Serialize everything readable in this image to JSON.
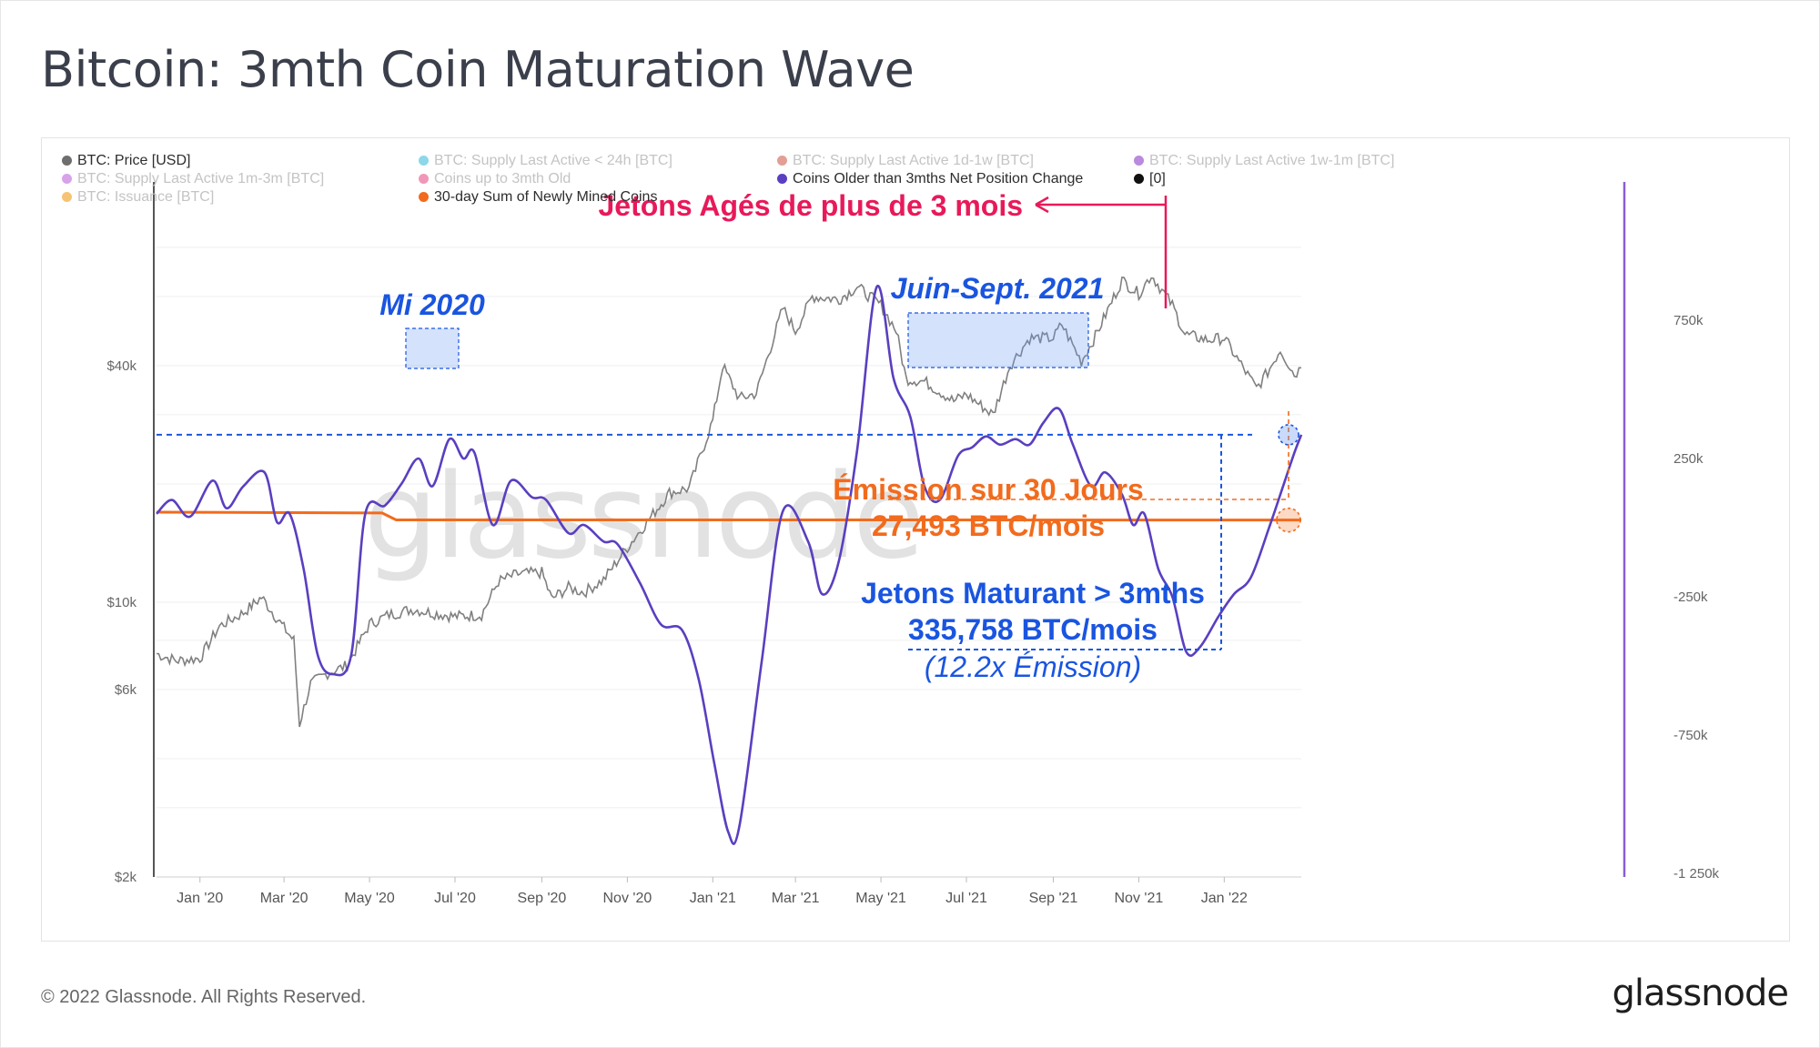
{
  "title": "Bitcoin: 3mth Coin Maturation Wave",
  "footer": "© 2022 Glassnode. All Rights Reserved.",
  "brand": "glassnode",
  "watermark": "glassnode",
  "legend": [
    {
      "label": "BTC: Price [USD]",
      "color": "#6e6e6e",
      "active": true
    },
    {
      "label": "BTC: Supply Last Active < 24h [BTC]",
      "color": "#5bc7e0",
      "active": false
    },
    {
      "label": "BTC: Supply Last Active 1d-1w [BTC]",
      "color": "#d7756a",
      "active": false
    },
    {
      "label": "BTC: Supply Last Active 1w-1m [BTC]",
      "color": "#9b59d0",
      "active": false
    },
    {
      "label": "BTC: Supply Last Active 1m-3m [BTC]",
      "color": "#c77be0",
      "active": false
    },
    {
      "label": "Coins up to 3mth Old",
      "color": "#e96b9b",
      "active": false
    },
    {
      "label": "Coins Older than 3mths Net Position Change",
      "color": "#5a3fc0",
      "active": true
    },
    {
      "label": "[0]",
      "color": "#111111",
      "active": true
    },
    {
      "label": "BTC: Issuance [BTC]",
      "color": "#f2a93b",
      "active": false
    },
    {
      "label": "30-day Sum of Newly Mined Coins",
      "color": "#f26b1d",
      "active": true
    }
  ],
  "annotations": {
    "mi2020": "Mi 2020",
    "juin_sept": "Juin-Sept. 2021",
    "jetons_ages": "Jetons Agés de plus de 3 mois",
    "emission_1": "Émission sur 30 Jours",
    "emission_2": "27,493 BTC/mois",
    "maturant_1": "Jetons Maturant > 3mths",
    "maturant_2": "335,758 BTC/mois",
    "maturant_3": "(12.2x Émission)"
  },
  "colors": {
    "price": "#808080",
    "net_position": "#5a3fc0",
    "mined": "#f26b1d",
    "blue_annot": "#1a55e0",
    "pink_annot": "#e8195a",
    "orange_annot": "#f26b1d",
    "right_axis": "#8a5cd6"
  },
  "chart_data": {
    "type": "line",
    "x_ticks": [
      "Jan '20",
      "Mar '20",
      "May '20",
      "Jul '20",
      "Sep '20",
      "Nov '20",
      "Jan '21",
      "Mar '21",
      "May '21",
      "Jul '21",
      "Sep '21",
      "Nov '21",
      "Jan '22"
    ],
    "y_left_scale": "log",
    "y_left_ticks": [
      "$2k",
      "$6k",
      "$10k",
      "$40k"
    ],
    "y_left_tick_values": [
      2000,
      6000,
      10000,
      40000
    ],
    "y_right_ticks": [
      "750k",
      "250k",
      "-250k",
      "-750k",
      "-1 250k"
    ],
    "y_right_tick_values": [
      750000,
      250000,
      -250000,
      -750000,
      -1250000
    ],
    "x_range": [
      "2019-12-01",
      "2022-02-25"
    ],
    "series": [
      {
        "name": "BTC: Price [USD]",
        "axis": "left",
        "points": [
          [
            "2019-12-01",
            7400
          ],
          [
            "2019-12-15",
            7100
          ],
          [
            "2020-01-01",
            7200
          ],
          [
            "2020-01-15",
            8700
          ],
          [
            "2020-02-01",
            9400
          ],
          [
            "2020-02-14",
            10300
          ],
          [
            "2020-03-01",
            8600
          ],
          [
            "2020-03-08",
            8000
          ],
          [
            "2020-03-12",
            4900
          ],
          [
            "2020-03-20",
            6200
          ],
          [
            "2020-04-01",
            6600
          ],
          [
            "2020-04-15",
            6900
          ],
          [
            "2020-05-01",
            8800
          ],
          [
            "2020-05-15",
            9300
          ],
          [
            "2020-06-01",
            9600
          ],
          [
            "2020-06-15",
            9400
          ],
          [
            "2020-07-01",
            9200
          ],
          [
            "2020-07-20",
            9300
          ],
          [
            "2020-08-01",
            11300
          ],
          [
            "2020-08-15",
            11800
          ],
          [
            "2020-09-01",
            11900
          ],
          [
            "2020-09-08",
            10200
          ],
          [
            "2020-09-20",
            10900
          ],
          [
            "2020-10-01",
            10600
          ],
          [
            "2020-10-15",
            11400
          ],
          [
            "2020-11-01",
            13800
          ],
          [
            "2020-11-15",
            16000
          ],
          [
            "2020-12-01",
            19000
          ],
          [
            "2020-12-15",
            19500
          ],
          [
            "2021-01-01",
            29000
          ],
          [
            "2021-01-08",
            40000
          ],
          [
            "2021-01-20",
            33000
          ],
          [
            "2021-02-01",
            34000
          ],
          [
            "2021-02-20",
            56000
          ],
          [
            "2021-03-01",
            49000
          ],
          [
            "2021-03-13",
            60000
          ],
          [
            "2021-04-01",
            59000
          ],
          [
            "2021-04-14",
            63500
          ],
          [
            "2021-05-01",
            57000
          ],
          [
            "2021-05-12",
            49000
          ],
          [
            "2021-05-19",
            37000
          ],
          [
            "2021-06-01",
            36500
          ],
          [
            "2021-06-22",
            32500
          ],
          [
            "2021-07-01",
            33800
          ],
          [
            "2021-07-20",
            30000
          ],
          [
            "2021-08-01",
            40000
          ],
          [
            "2021-08-15",
            47000
          ],
          [
            "2021-09-01",
            47000
          ],
          [
            "2021-09-07",
            51000
          ],
          [
            "2021-09-21",
            41000
          ],
          [
            "2021-10-01",
            47500
          ],
          [
            "2021-10-20",
            66000
          ],
          [
            "2021-11-01",
            61000
          ],
          [
            "2021-11-10",
            68000
          ],
          [
            "2021-11-25",
            57000
          ],
          [
            "2021-12-04",
            48000
          ],
          [
            "2021-12-20",
            46500
          ],
          [
            "2022-01-01",
            47000
          ],
          [
            "2022-01-10",
            41800
          ],
          [
            "2022-01-24",
            35000
          ],
          [
            "2022-02-01",
            38500
          ],
          [
            "2022-02-10",
            44000
          ],
          [
            "2022-02-20",
            38000
          ],
          [
            "2022-02-25",
            39500
          ]
        ]
      },
      {
        "name": "Coins Older than 3mths Net Position Change",
        "axis": "right",
        "points": [
          [
            "2019-12-01",
            50000
          ],
          [
            "2019-12-12",
            100000
          ],
          [
            "2019-12-25",
            40000
          ],
          [
            "2020-01-10",
            170000
          ],
          [
            "2020-01-20",
            70000
          ],
          [
            "2020-02-01",
            150000
          ],
          [
            "2020-02-16",
            200000
          ],
          [
            "2020-02-25",
            20000
          ],
          [
            "2020-03-05",
            50000
          ],
          [
            "2020-03-15",
            -150000
          ],
          [
            "2020-03-25",
            -460000
          ],
          [
            "2020-04-05",
            -530000
          ],
          [
            "2020-04-18",
            -460000
          ],
          [
            "2020-04-28",
            50000
          ],
          [
            "2020-05-12",
            80000
          ],
          [
            "2020-05-24",
            160000
          ],
          [
            "2020-06-05",
            250000
          ],
          [
            "2020-06-15",
            150000
          ],
          [
            "2020-06-27",
            320000
          ],
          [
            "2020-07-07",
            250000
          ],
          [
            "2020-07-15",
            270000
          ],
          [
            "2020-07-28",
            10000
          ],
          [
            "2020-08-10",
            170000
          ],
          [
            "2020-08-25",
            110000
          ],
          [
            "2020-09-04",
            100000
          ],
          [
            "2020-09-20",
            -20000
          ],
          [
            "2020-10-01",
            10000
          ],
          [
            "2020-10-15",
            -50000
          ],
          [
            "2020-10-25",
            -60000
          ],
          [
            "2020-11-10",
            -200000
          ],
          [
            "2020-11-25",
            -350000
          ],
          [
            "2020-12-10",
            -370000
          ],
          [
            "2020-12-22",
            -550000
          ],
          [
            "2021-01-02",
            -850000
          ],
          [
            "2021-01-12",
            -1100000
          ],
          [
            "2021-01-20",
            -1080000
          ],
          [
            "2021-02-05",
            -480000
          ],
          [
            "2021-02-20",
            60000
          ],
          [
            "2021-03-10",
            -50000
          ],
          [
            "2021-03-20",
            -240000
          ],
          [
            "2021-04-01",
            -120000
          ],
          [
            "2021-04-14",
            280000
          ],
          [
            "2021-04-28",
            870000
          ],
          [
            "2021-05-10",
            540000
          ],
          [
            "2021-05-22",
            400000
          ],
          [
            "2021-06-01",
            150000
          ],
          [
            "2021-06-12",
            100000
          ],
          [
            "2021-06-25",
            260000
          ],
          [
            "2021-07-05",
            290000
          ],
          [
            "2021-07-15",
            330000
          ],
          [
            "2021-07-25",
            300000
          ],
          [
            "2021-08-05",
            320000
          ],
          [
            "2021-08-15",
            300000
          ],
          [
            "2021-08-25",
            380000
          ],
          [
            "2021-09-05",
            430000
          ],
          [
            "2021-09-15",
            300000
          ],
          [
            "2021-09-28",
            150000
          ],
          [
            "2021-10-08",
            200000
          ],
          [
            "2021-10-20",
            120000
          ],
          [
            "2021-10-28",
            10000
          ],
          [
            "2021-11-05",
            50000
          ],
          [
            "2021-11-15",
            -150000
          ],
          [
            "2021-11-25",
            -250000
          ],
          [
            "2021-12-05",
            -450000
          ],
          [
            "2021-12-15",
            -430000
          ],
          [
            "2021-12-28",
            -320000
          ],
          [
            "2022-01-08",
            -240000
          ],
          [
            "2022-01-20",
            -180000
          ],
          [
            "2022-02-02",
            0
          ],
          [
            "2022-02-12",
            150000
          ],
          [
            "2022-02-20",
            270000
          ],
          [
            "2022-02-25",
            335758
          ]
        ]
      },
      {
        "name": "30-day Sum of Newly Mined Coins",
        "axis": "right",
        "points": [
          [
            "2019-12-01",
            56000
          ],
          [
            "2020-05-10",
            53000
          ],
          [
            "2020-05-20",
            28000
          ],
          [
            "2022-02-25",
            27493
          ]
        ]
      }
    ]
  }
}
